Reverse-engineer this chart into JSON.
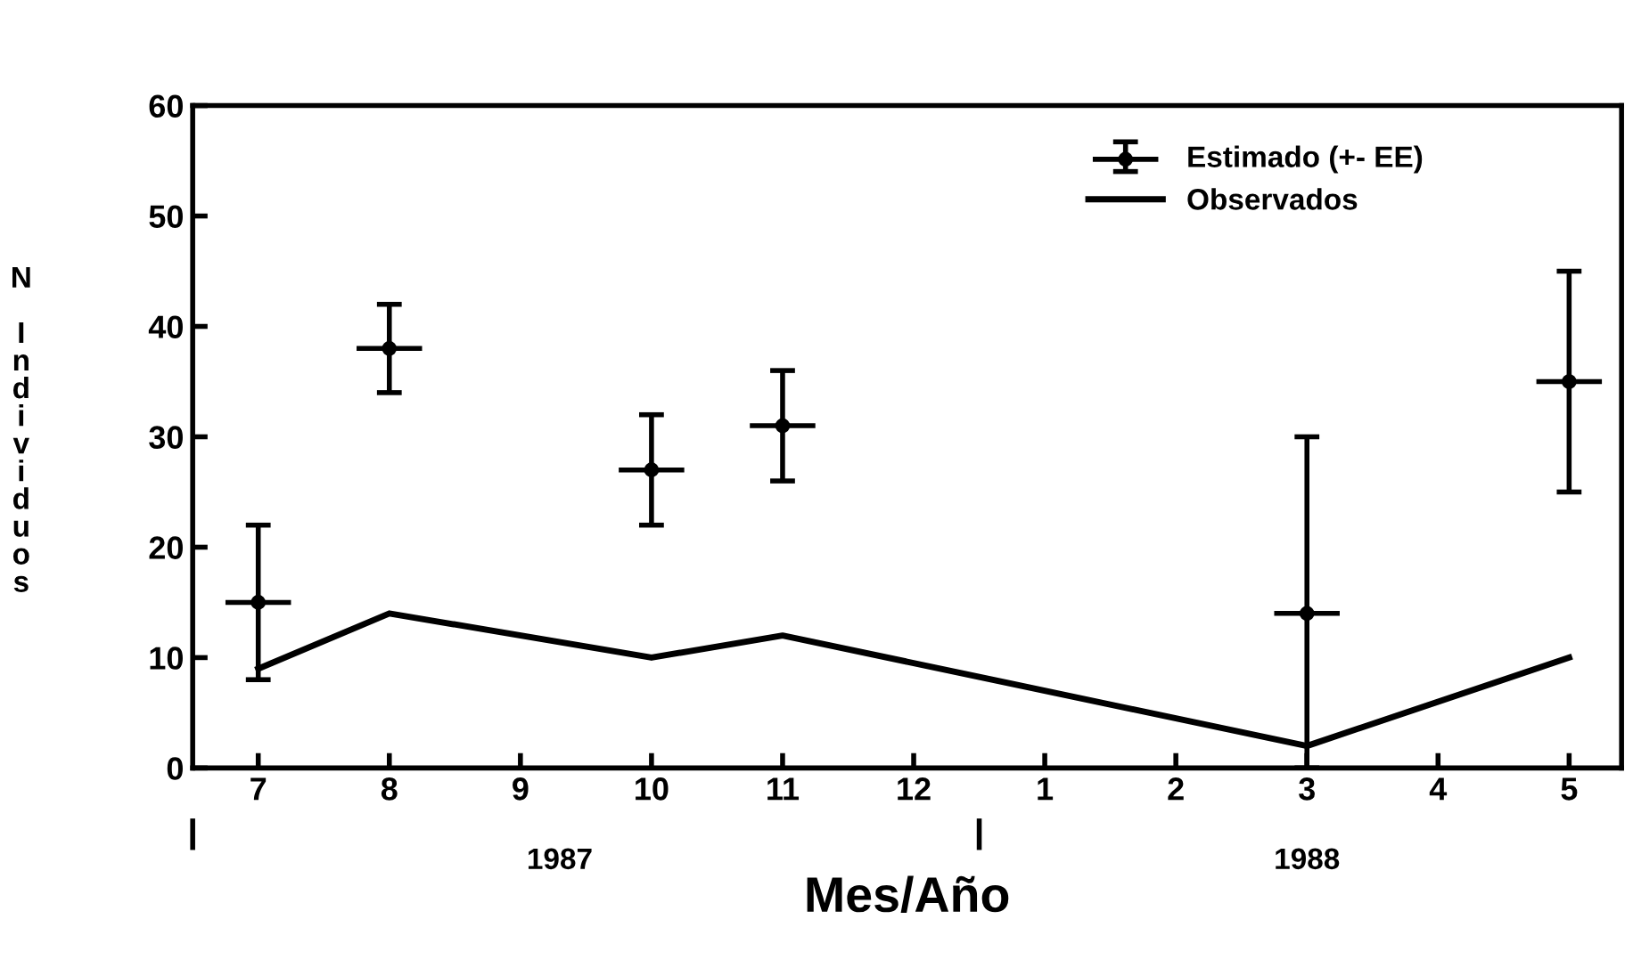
{
  "chart_data": {
    "type": "scatter",
    "xlabel": "Mes/Año",
    "ylabel": "N Individuos",
    "categories": [
      "7",
      "8",
      "9",
      "10",
      "11",
      "12",
      "1",
      "2",
      "3",
      "4",
      "5"
    ],
    "annotations": [
      "1987",
      "1988"
    ],
    "ylim": [
      0,
      60
    ],
    "yticks": [
      0,
      10,
      20,
      30,
      40,
      50,
      60
    ],
    "series": [
      {
        "name": "Estimado (+- EE)",
        "color": "#000000",
        "marker": "circle",
        "values": [
          15,
          38,
          null,
          27,
          31,
          null,
          null,
          null,
          14,
          null,
          35
        ],
        "errors": [
          [
            8,
            22
          ],
          [
            34,
            42
          ],
          null,
          [
            22,
            32
          ],
          [
            26,
            36
          ],
          null,
          null,
          null,
          [
            0,
            30
          ],
          null,
          [
            25,
            45
          ]
        ]
      },
      {
        "name": "Observados",
        "type": "line",
        "color": "#000000",
        "x": [
          "7",
          "8",
          "10",
          "11",
          "3",
          "5"
        ],
        "values": [
          9,
          14,
          10,
          12,
          2,
          10
        ]
      }
    ],
    "legend": "top right",
    "line_style": "solid"
  }
}
